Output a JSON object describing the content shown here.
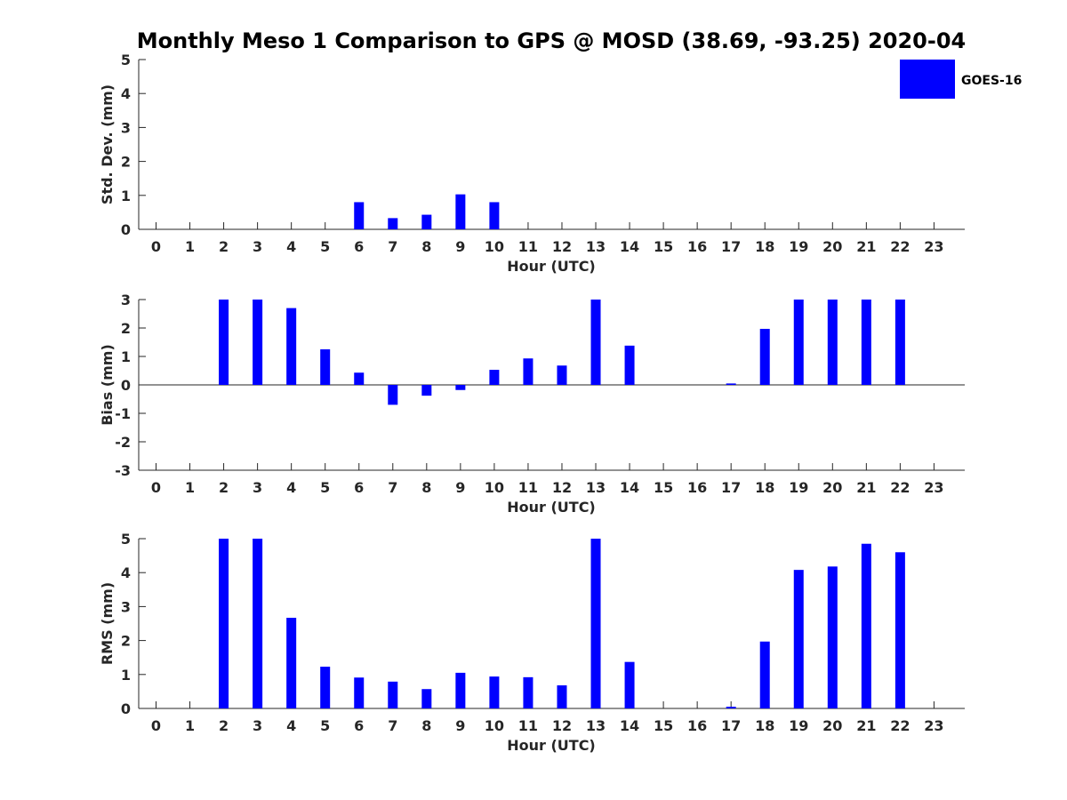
{
  "figure": {
    "title": "Monthly Meso 1 Comparison to GPS @ MOSD (38.69, -93.25) 2020-04",
    "legend": {
      "label": "GOES-16",
      "color": "#0000ff",
      "placement": "top-right"
    }
  },
  "chart_data": [
    {
      "type": "bar",
      "name": "std-dev",
      "title": "Monthly Meso 1 Comparison to GPS @ MOSD (38.69, -93.25) 2020-04",
      "xlabel": "Hour (UTC)",
      "ylabel": "Std. Dev. (mm)",
      "ylim": [
        0,
        5
      ],
      "yticks": [
        0,
        1,
        2,
        3,
        4,
        5
      ],
      "categories": [
        0,
        1,
        2,
        3,
        4,
        5,
        6,
        7,
        8,
        9,
        10,
        11,
        12,
        13,
        14,
        15,
        16,
        17,
        18,
        19,
        20,
        21,
        22,
        23
      ],
      "series": [
        {
          "name": "GOES-16",
          "color": "#0000ff",
          "values": [
            0,
            0,
            0,
            0,
            0,
            0,
            0.8,
            0.33,
            0.43,
            1.03,
            0.8,
            0,
            0,
            0,
            0,
            0,
            0,
            0,
            0,
            0,
            0,
            0,
            0,
            0
          ]
        }
      ]
    },
    {
      "type": "bar",
      "name": "bias",
      "xlabel": "Hour (UTC)",
      "ylabel": "Bias (mm)",
      "ylim": [
        -3,
        3
      ],
      "yticks": [
        -3,
        -2,
        -1,
        0,
        1,
        2,
        3
      ],
      "categories": [
        0,
        1,
        2,
        3,
        4,
        5,
        6,
        7,
        8,
        9,
        10,
        11,
        12,
        13,
        14,
        15,
        16,
        17,
        18,
        19,
        20,
        21,
        22,
        23
      ],
      "series": [
        {
          "name": "GOES-16",
          "color": "#0000ff",
          "values": [
            0,
            0,
            3,
            3,
            2.7,
            1.25,
            0.43,
            -0.7,
            -0.38,
            -0.18,
            0.53,
            0.93,
            0.68,
            3,
            1.38,
            0,
            0,
            0.05,
            1.97,
            3,
            3,
            3,
            3,
            0
          ]
        }
      ]
    },
    {
      "type": "bar",
      "name": "rms",
      "xlabel": "Hour (UTC)",
      "ylabel": "RMS (mm)",
      "ylim": [
        0,
        5
      ],
      "yticks": [
        0,
        1,
        2,
        3,
        4,
        5
      ],
      "categories": [
        0,
        1,
        2,
        3,
        4,
        5,
        6,
        7,
        8,
        9,
        10,
        11,
        12,
        13,
        14,
        15,
        16,
        17,
        18,
        19,
        20,
        21,
        22,
        23
      ],
      "series": [
        {
          "name": "GOES-16",
          "color": "#0000ff",
          "values": [
            0,
            0,
            5,
            5,
            2.67,
            1.23,
            0.91,
            0.79,
            0.57,
            1.05,
            0.94,
            0.92,
            0.68,
            5,
            1.37,
            0,
            0,
            0.05,
            1.97,
            4.08,
            4.18,
            4.85,
            4.6,
            0
          ]
        }
      ]
    }
  ]
}
